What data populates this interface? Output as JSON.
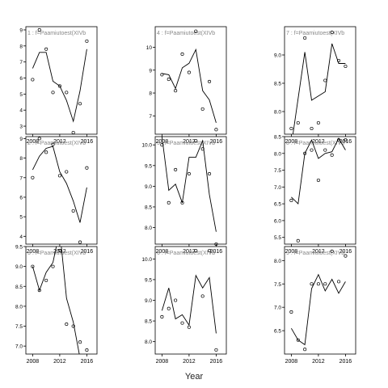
{
  "figure": {
    "xlabel": "Year",
    "x_ticks": [
      2008,
      2012,
      2016
    ]
  },
  "chart_data": [
    {
      "type": "line",
      "title": "1 : f=Paamiutoest(XIVb",
      "xlim": [
        2007,
        2017.5
      ],
      "ylim": [
        2.5,
        9.2
      ],
      "y_ticks": [
        3,
        4,
        5,
        6,
        7,
        8,
        9
      ],
      "y_tick_labels": [
        "3",
        "4",
        "5",
        "6",
        "7",
        "8",
        "9"
      ],
      "points": {
        "x": [
          2008,
          2009,
          2010,
          2011,
          2012,
          2013,
          2014,
          2015,
          2016
        ],
        "y": [
          5.9,
          9.0,
          7.8,
          5.1,
          5.5,
          5.1,
          2.6,
          4.4,
          8.3
        ]
      },
      "line": {
        "x": [
          2008,
          2009,
          2010,
          2011,
          2012,
          2013,
          2014,
          2015,
          2016
        ],
        "y": [
          6.6,
          7.6,
          7.6,
          5.8,
          5.5,
          4.6,
          3.3,
          5.2,
          7.8
        ]
      }
    },
    {
      "type": "line",
      "title": "4 : f=Paamiutoest(XIVb",
      "xlim": [
        2007,
        2017.5
      ],
      "ylim": [
        6.2,
        10.9
      ],
      "y_ticks": [
        7,
        8,
        9,
        10
      ],
      "y_tick_labels": [
        "7",
        "8",
        "9",
        "10"
      ],
      "points": {
        "x": [
          2008,
          2009,
          2010,
          2011,
          2012,
          2013,
          2014,
          2015,
          2016
        ],
        "y": [
          8.8,
          8.6,
          8.1,
          9.7,
          8.9,
          10.7,
          7.3,
          8.5,
          6.4
        ]
      },
      "line": {
        "x": [
          2008,
          2009,
          2010,
          2011,
          2012,
          2013,
          2014,
          2015,
          2016
        ],
        "y": [
          8.85,
          8.8,
          8.2,
          9.1,
          9.3,
          9.9,
          8.1,
          7.7,
          6.7
        ]
      }
    },
    {
      "type": "line",
      "title": "7 : f=Paamiutoest(XIVb",
      "xlim": [
        2007,
        2017.5
      ],
      "ylim": [
        7.6,
        9.5
      ],
      "y_ticks": [
        8.0,
        8.5,
        9.0
      ],
      "y_tick_labels": [
        "8.0",
        "8.5",
        "9.0"
      ],
      "points": {
        "x": [
          2008,
          2009,
          2010,
          2011,
          2012,
          2013,
          2014,
          2015,
          2016
        ],
        "y": [
          7.7,
          7.8,
          9.3,
          7.7,
          7.8,
          8.55,
          9.4,
          8.9,
          8.8
        ]
      },
      "line": {
        "x": [
          2008,
          2010,
          2011,
          2013,
          2014,
          2015,
          2016
        ],
        "y": [
          7.4,
          9.05,
          8.2,
          8.35,
          9.2,
          8.85,
          8.85
        ]
      }
    },
    {
      "type": "line",
      "title": "2 : f=Paamiutoest(XIVb",
      "xlim": [
        2007,
        2017.5
      ],
      "ylim": [
        3.6,
        9.1
      ],
      "y_ticks": [
        4,
        5,
        6,
        7,
        8,
        9
      ],
      "y_tick_labels": [
        "4",
        "5",
        "6",
        "7",
        "8",
        "9"
      ],
      "points": {
        "x": [
          2008,
          2009,
          2010,
          2011,
          2012,
          2013,
          2014,
          2015,
          2016
        ],
        "y": [
          7.0,
          9.0,
          8.3,
          8.7,
          7.1,
          7.3,
          5.3,
          3.7,
          7.5
        ]
      },
      "line": {
        "x": [
          2008,
          2009,
          2010,
          2011,
          2012,
          2013,
          2014,
          2015,
          2016
        ],
        "y": [
          7.4,
          8.1,
          8.5,
          8.6,
          7.3,
          6.7,
          5.8,
          4.7,
          6.5
        ]
      }
    },
    {
      "type": "line",
      "title": "5 : f=Paamiutoest(XIVb",
      "xlim": [
        2007,
        2017.5
      ],
      "ylim": [
        7.6,
        10.2
      ],
      "y_ticks": [
        8.0,
        8.5,
        9.0,
        9.5,
        10.0
      ],
      "y_tick_labels": [
        "8.0",
        "8.5",
        "9.0",
        "9.5",
        "10.0"
      ],
      "points": {
        "x": [
          2008,
          2009,
          2010,
          2011,
          2012,
          2013,
          2014,
          2015,
          2016
        ],
        "y": [
          10.0,
          8.6,
          9.4,
          8.6,
          9.3,
          10.1,
          9.9,
          9.3,
          7.6
        ]
      },
      "line": {
        "x": [
          2008,
          2009,
          2010,
          2011,
          2012,
          2013,
          2014,
          2015,
          2016
        ],
        "y": [
          10.2,
          8.9,
          9.05,
          8.6,
          9.7,
          9.7,
          10.1,
          8.8,
          7.9
        ]
      }
    },
    {
      "type": "line",
      "title": "8 : f=Paamiutoest(XIVb",
      "xlim": [
        2007,
        2017.5
      ],
      "ylim": [
        5.3,
        8.5
      ],
      "y_ticks": [
        5.5,
        6.0,
        6.5,
        7.0,
        7.5,
        8.0,
        8.5
      ],
      "y_tick_labels": [
        "5.5",
        "6.0",
        "6.5",
        "7.0",
        "7.5",
        "8.0",
        "8.5"
      ],
      "points": {
        "x": [
          2008,
          2009,
          2010,
          2011,
          2012,
          2013,
          2014,
          2015,
          2016
        ],
        "y": [
          6.6,
          5.4,
          8.0,
          8.1,
          7.2,
          8.1,
          7.95,
          8.4,
          8.4
        ]
      },
      "line": {
        "x": [
          2008,
          2009,
          2010,
          2011,
          2012,
          2013,
          2014,
          2015,
          2016
        ],
        "y": [
          6.7,
          6.5,
          8.0,
          8.4,
          7.85,
          8.0,
          8.05,
          8.45,
          8.1
        ]
      }
    },
    {
      "type": "line",
      "title": "3 : f=Paamiutoest(XIVb",
      "xlim": [
        2007,
        2017.5
      ],
      "ylim": [
        6.8,
        9.5
      ],
      "y_ticks": [
        7.0,
        7.5,
        8.0,
        8.5,
        9.0,
        9.5
      ],
      "y_tick_labels": [
        "7.0",
        "7.5",
        "8.0",
        "8.5",
        "9.0",
        "9.5"
      ],
      "points": {
        "x": [
          2008,
          2009,
          2010,
          2011,
          2012,
          2013,
          2014,
          2015,
          2016
        ],
        "y": [
          9.0,
          8.4,
          8.65,
          9.0,
          9.4,
          7.55,
          7.5,
          7.1,
          6.9
        ]
      },
      "line": {
        "x": [
          2008,
          2009,
          2010,
          2011,
          2012,
          2013,
          2014,
          2015
        ],
        "y": [
          9.0,
          8.4,
          8.85,
          9.1,
          9.9,
          8.2,
          7.6,
          6.7
        ]
      }
    },
    {
      "type": "line",
      "title": "6 : f=Paamiutoest(XIVb",
      "xlim": [
        2007,
        2017.5
      ],
      "ylim": [
        7.7,
        10.3
      ],
      "y_ticks": [
        8.0,
        8.5,
        9.0,
        9.5,
        10.0
      ],
      "y_tick_labels": [
        "8.0",
        "8.5",
        "9.0",
        "9.5",
        "10.0"
      ],
      "points": {
        "x": [
          2008,
          2009,
          2010,
          2011,
          2012,
          2013,
          2014,
          2015,
          2016
        ],
        "y": [
          8.6,
          8.8,
          9.0,
          8.45,
          8.35,
          10.2,
          9.1,
          10.2,
          7.8
        ]
      },
      "line": {
        "x": [
          2008,
          2009,
          2010,
          2011,
          2012,
          2013,
          2014,
          2015,
          2016
        ],
        "y": [
          8.75,
          9.3,
          8.55,
          8.65,
          8.4,
          9.6,
          9.3,
          9.55,
          8.2
        ]
      }
    },
    {
      "type": "line",
      "title": "9 : f=Paamiutoest(XIVb",
      "xlim": [
        2007,
        2017.5
      ],
      "ylim": [
        6.0,
        8.3
      ],
      "y_ticks": [
        6.5,
        7.0,
        7.5,
        8.0
      ],
      "y_tick_labels": [
        "6.5",
        "7.0",
        "7.5",
        "8.0"
      ],
      "points": {
        "x": [
          2008,
          2009,
          2010,
          2011,
          2012,
          2013,
          2014,
          2015,
          2016
        ],
        "y": [
          6.9,
          6.3,
          6.1,
          7.5,
          7.5,
          7.5,
          8.2,
          7.55,
          8.1
        ]
      },
      "line": {
        "x": [
          2008,
          2009,
          2010,
          2011,
          2012,
          2013,
          2014,
          2015,
          2016
        ],
        "y": [
          6.55,
          6.3,
          6.2,
          7.4,
          7.7,
          7.35,
          7.6,
          7.3,
          7.55
        ]
      }
    }
  ]
}
